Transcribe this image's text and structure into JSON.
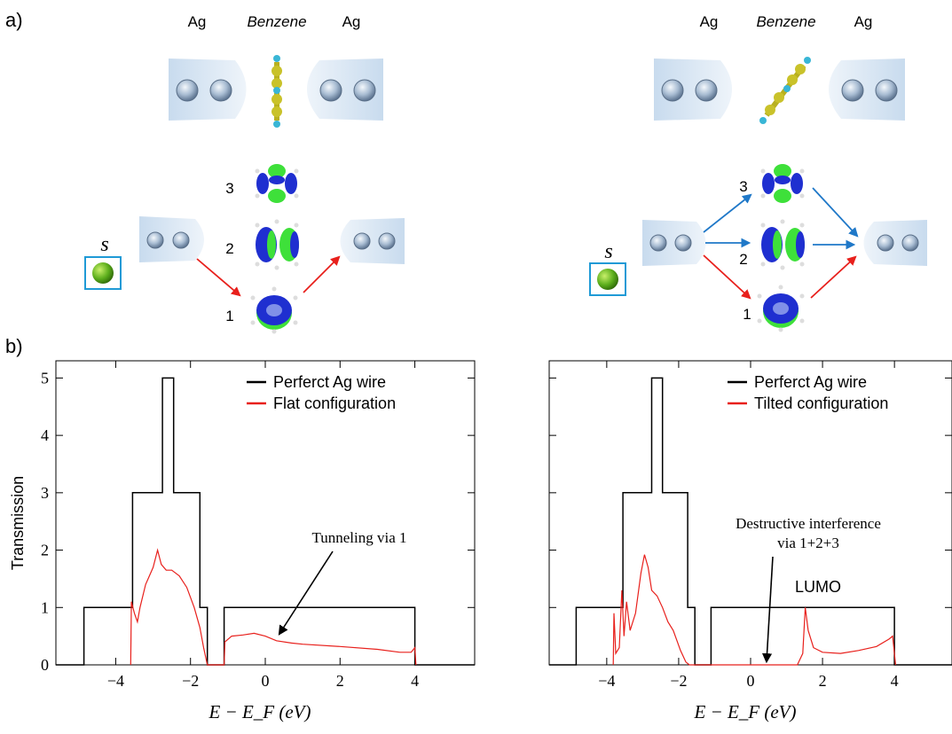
{
  "panel_labels": {
    "a": "a)",
    "b": "b)"
  },
  "left_top": {
    "lead_left": "Ag",
    "molecule": "Benzene",
    "lead_right": "Ag"
  },
  "right_top": {
    "lead_left": "Ag",
    "molecule": "Benzene",
    "lead_right": "Ag"
  },
  "orbital_labels_left": [
    "3",
    "2",
    "1"
  ],
  "orbital_labels_right": [
    "3",
    "2",
    "1"
  ],
  "s_label": "s",
  "colors": {
    "lead": "#d6e4f2",
    "atom": "#9fb4cc",
    "c_atom": "#b8b020",
    "h_atom": "#39b6d6",
    "orbital_blue": "#1f2fd0",
    "orbital_green": "#3ee03a",
    "arrow_red": "#e8201c",
    "arrow_blue": "#1f78c8",
    "perfect_wire": "#000000",
    "configuration": "#e8201c"
  },
  "chart_data": [
    {
      "type": "line",
      "xlabel": "E − E_F (eV)",
      "ylabel": "Transmission",
      "xlim": [
        -5.6,
        5.6
      ],
      "ylim": [
        0,
        5.3
      ],
      "xticks": [
        -4,
        -2,
        0,
        2,
        4
      ],
      "yticks": [
        0,
        1,
        2,
        3,
        4,
        5
      ],
      "legend": "top-right",
      "series": [
        {
          "name": "Perferct Ag wire",
          "color": "#000000",
          "points": [
            [
              -5.6,
              0
            ],
            [
              -4.85,
              0
            ],
            [
              -4.85,
              1
            ],
            [
              -3.55,
              1
            ],
            [
              -3.55,
              3
            ],
            [
              -2.75,
              3
            ],
            [
              -2.75,
              5
            ],
            [
              -2.45,
              5
            ],
            [
              -2.45,
              3
            ],
            [
              -1.75,
              3
            ],
            [
              -1.75,
              1
            ],
            [
              -1.55,
              1
            ],
            [
              -1.55,
              0
            ],
            [
              -1.1,
              0
            ],
            [
              -1.1,
              1
            ],
            [
              4.0,
              1
            ],
            [
              4.0,
              0
            ],
            [
              5.6,
              0
            ]
          ]
        },
        {
          "name": "Flat configuration",
          "color": "#e8201c",
          "points": [
            [
              -3.6,
              0
            ],
            [
              -3.58,
              1.1
            ],
            [
              -3.5,
              0.9
            ],
            [
              -3.42,
              0.75
            ],
            [
              -3.35,
              1.0
            ],
            [
              -3.2,
              1.4
            ],
            [
              -3.0,
              1.7
            ],
            [
              -2.88,
              2.0
            ],
            [
              -2.78,
              1.75
            ],
            [
              -2.65,
              1.65
            ],
            [
              -2.5,
              1.65
            ],
            [
              -2.3,
              1.55
            ],
            [
              -2.1,
              1.35
            ],
            [
              -1.9,
              1.0
            ],
            [
              -1.75,
              0.65
            ],
            [
              -1.65,
              0.3
            ],
            [
              -1.55,
              0
            ],
            [
              -1.1,
              0
            ],
            [
              -1.08,
              0.4
            ],
            [
              -0.9,
              0.5
            ],
            [
              -0.6,
              0.52
            ],
            [
              -0.3,
              0.55
            ],
            [
              0,
              0.5
            ],
            [
              0.3,
              0.42
            ],
            [
              0.7,
              0.38
            ],
            [
              1.0,
              0.36
            ],
            [
              2.0,
              0.32
            ],
            [
              3.0,
              0.27
            ],
            [
              3.6,
              0.22
            ],
            [
              3.9,
              0.22
            ],
            [
              4.0,
              0.3
            ],
            [
              4.03,
              0
            ]
          ]
        }
      ],
      "annotations": [
        {
          "text": "Tunneling via 1",
          "x": 0.2,
          "y": 0.45
        }
      ]
    },
    {
      "type": "line",
      "xlabel": "E − E_F (eV)",
      "ylabel": "",
      "xlim": [
        -5.6,
        5.6
      ],
      "ylim": [
        0,
        5.3
      ],
      "xticks": [
        -4,
        -2,
        0,
        2,
        4
      ],
      "yticks": [
        0,
        1,
        2,
        3,
        4,
        5
      ],
      "legend": "top-right",
      "series": [
        {
          "name": "Perferct Ag wire",
          "color": "#000000",
          "points": [
            [
              -5.6,
              0
            ],
            [
              -4.85,
              0
            ],
            [
              -4.85,
              1
            ],
            [
              -3.55,
              1
            ],
            [
              -3.55,
              3
            ],
            [
              -2.75,
              3
            ],
            [
              -2.75,
              5
            ],
            [
              -2.45,
              5
            ],
            [
              -2.45,
              3
            ],
            [
              -1.75,
              3
            ],
            [
              -1.75,
              1
            ],
            [
              -1.55,
              1
            ],
            [
              -1.55,
              0
            ],
            [
              -1.1,
              0
            ],
            [
              -1.1,
              1
            ],
            [
              4.0,
              1
            ],
            [
              4.0,
              0
            ],
            [
              5.6,
              0
            ]
          ]
        },
        {
          "name": "Tilted configuration",
          "color": "#e8201c",
          "points": [
            [
              -3.82,
              0
            ],
            [
              -3.8,
              0.9
            ],
            [
              -3.75,
              0.2
            ],
            [
              -3.65,
              0.3
            ],
            [
              -3.58,
              1.3
            ],
            [
              -3.52,
              0.5
            ],
            [
              -3.45,
              1.1
            ],
            [
              -3.35,
              0.6
            ],
            [
              -3.2,
              0.9
            ],
            [
              -3.05,
              1.6
            ],
            [
              -2.95,
              1.92
            ],
            [
              -2.85,
              1.7
            ],
            [
              -2.75,
              1.3
            ],
            [
              -2.6,
              1.2
            ],
            [
              -2.45,
              1.0
            ],
            [
              -2.3,
              0.75
            ],
            [
              -2.15,
              0.6
            ],
            [
              -1.95,
              0.25
            ],
            [
              -1.8,
              0.05
            ],
            [
              -1.7,
              0
            ],
            [
              -1.1,
              0
            ],
            [
              1.3,
              0
            ],
            [
              1.45,
              0.2
            ],
            [
              1.52,
              1.0
            ],
            [
              1.6,
              0.6
            ],
            [
              1.75,
              0.3
            ],
            [
              2.0,
              0.22
            ],
            [
              2.5,
              0.2
            ],
            [
              3.0,
              0.25
            ],
            [
              3.5,
              0.32
            ],
            [
              3.85,
              0.45
            ],
            [
              3.95,
              0.5
            ],
            [
              4.03,
              0
            ]
          ]
        }
      ],
      "annotations": [
        {
          "text": "Destructive interference",
          "x": 0.05,
          "y": 0.05
        },
        {
          "text": "via 1+2+3",
          "x": 0.05,
          "y": 0.05
        },
        {
          "text": "LUMO",
          "x": 1.5,
          "y": 1.0
        }
      ]
    }
  ]
}
